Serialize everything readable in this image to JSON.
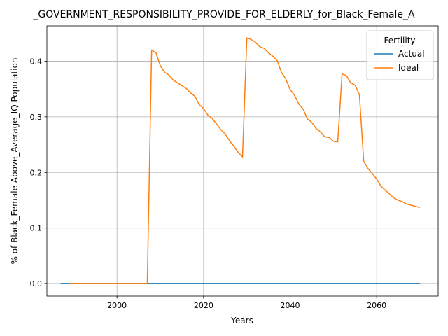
{
  "chart_data": {
    "type": "line",
    "title": "_GOVERNMENT_RESPONSIBILITY_PROVIDE_FOR_ELDERLY_for_Black_Female_A",
    "xlabel": "Years",
    "ylabel": "% of Black_Female Above_Average_IQ Population",
    "xlim": [
      1983.8,
      2074.2
    ],
    "ylim": [
      -0.0225,
      0.4635
    ],
    "xticks": [
      2000,
      2020,
      2040,
      2060
    ],
    "yticks": [
      0.0,
      0.1,
      0.2,
      0.3,
      0.4
    ],
    "ytick_labels": [
      "0.0",
      "0.1",
      "0.2",
      "0.3",
      "0.4"
    ],
    "grid": true,
    "legend": {
      "title": "Fertility",
      "placement": "top-right"
    },
    "series": [
      {
        "name": "Actual",
        "color": "#1f77b4",
        "x": [
          1987,
          2070
        ],
        "y": [
          0.0,
          0.0
        ]
      },
      {
        "name": "Ideal",
        "color": "#ff7f0e",
        "x": [
          1989,
          1995,
          2000,
          2005,
          2007,
          2008,
          2009,
          2010,
          2011,
          2012,
          2013,
          2014,
          2015,
          2016,
          2017,
          2018,
          2019,
          2020,
          2021,
          2022,
          2023,
          2024,
          2025,
          2026,
          2027,
          2028,
          2029,
          2030,
          2031,
          2032,
          2033,
          2034,
          2035,
          2036,
          2037,
          2038,
          2039,
          2040,
          2041,
          2042,
          2043,
          2044,
          2045,
          2046,
          2047,
          2048,
          2049,
          2050,
          2051,
          2052,
          2053,
          2054,
          2055,
          2056,
          2057,
          2058,
          2059,
          2060,
          2061,
          2062,
          2063,
          2064,
          2065,
          2066,
          2067,
          2068,
          2069,
          2070
        ],
        "y": [
          0.0,
          0.0,
          0.0,
          0.0,
          0.0,
          0.42,
          0.415,
          0.392,
          0.38,
          0.375,
          0.366,
          0.361,
          0.356,
          0.351,
          0.343,
          0.337,
          0.322,
          0.315,
          0.303,
          0.297,
          0.287,
          0.277,
          0.269,
          0.257,
          0.247,
          0.236,
          0.228,
          0.442,
          0.439,
          0.434,
          0.426,
          0.423,
          0.415,
          0.409,
          0.401,
          0.38,
          0.368,
          0.349,
          0.339,
          0.323,
          0.314,
          0.296,
          0.29,
          0.279,
          0.273,
          0.264,
          0.263,
          0.256,
          0.255,
          0.377,
          0.374,
          0.361,
          0.357,
          0.34,
          0.22,
          0.207,
          0.198,
          0.188,
          0.175,
          0.168,
          0.161,
          0.154,
          0.15,
          0.147,
          0.143,
          0.141,
          0.139,
          0.137
        ]
      }
    ]
  }
}
